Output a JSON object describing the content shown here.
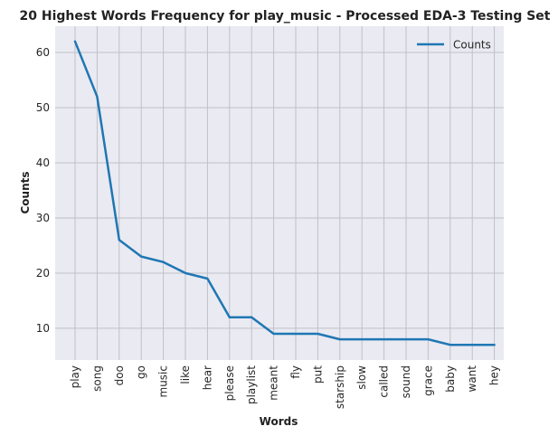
{
  "chart_data": {
    "type": "line",
    "title": "20 Highest Words Frequency for play_music - Processed EDA-3 Testing Set",
    "xlabel": "Words",
    "ylabel": "Counts",
    "categories": [
      "play",
      "song",
      "doo",
      "go",
      "music",
      "like",
      "hear",
      "please",
      "playlist",
      "meant",
      "fly",
      "put",
      "starship",
      "slow",
      "called",
      "sound",
      "grace",
      "baby",
      "want",
      "hey"
    ],
    "series": [
      {
        "name": "Counts",
        "values": [
          62,
          52,
          26,
          23,
          22,
          20,
          19,
          12,
          12,
          9,
          9,
          9,
          8,
          8,
          8,
          8,
          8,
          7,
          7,
          7
        ],
        "color": "#1f77b4"
      }
    ],
    "ylim": [
      4.25,
      64.75
    ],
    "yticks": [
      10,
      20,
      30,
      40,
      50,
      60
    ],
    "grid": true,
    "legend": "top-right",
    "background": "#eaeaf2",
    "grid_color": "#c0c0c8"
  }
}
